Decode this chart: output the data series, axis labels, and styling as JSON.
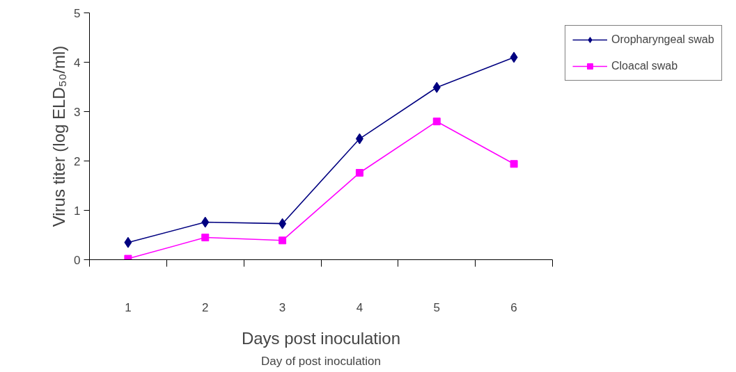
{
  "chart_data": {
    "type": "line",
    "xlabel": "Days post inoculation",
    "ylabel": "Virus titer (log ELD₅₀/ml)",
    "annotations": [
      "Day of post inoculation"
    ],
    "categories": [
      "1",
      "2",
      "3",
      "4",
      "5",
      "6"
    ],
    "ylim": [
      0,
      5
    ],
    "yticks": [
      0,
      1,
      2,
      3,
      4,
      5
    ],
    "grid": false,
    "legend": "right",
    "line_style": "solid",
    "series": [
      {
        "name": "Oropharyngeal swab",
        "color": "#000080",
        "marker": "diamond",
        "values": [
          0.35,
          0.76,
          0.73,
          2.45,
          3.49,
          4.1
        ]
      },
      {
        "name": "Cloacal swab",
        "color": "#ff00ff",
        "marker": "square",
        "values": [
          0.02,
          0.45,
          0.39,
          1.76,
          2.8,
          1.94
        ]
      }
    ]
  }
}
